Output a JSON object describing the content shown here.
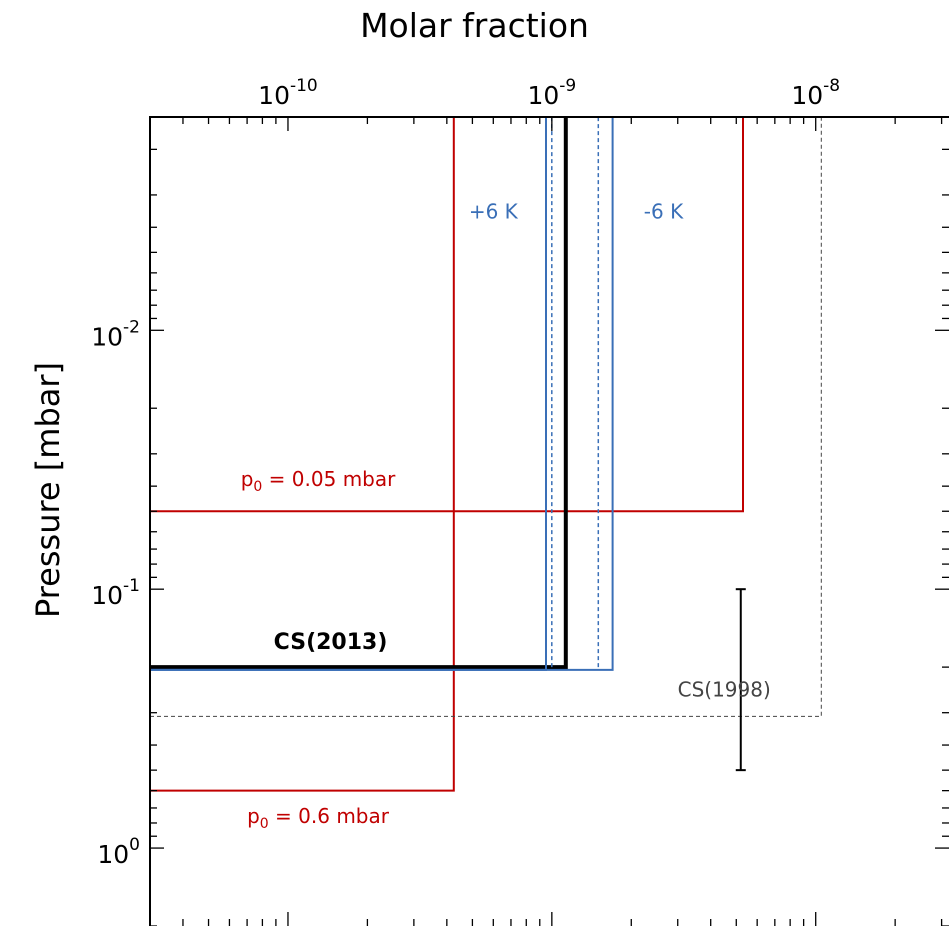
{
  "chart_data": {
    "type": "line",
    "title": "",
    "xlabel": "Molar fraction",
    "ylabel": "Pressure [mbar]",
    "x_axis": {
      "scale": "log",
      "position": "top",
      "range": [
        3e-11,
        3.2e-08
      ],
      "ticks": [
        {
          "base": "10",
          "exp": "-10",
          "value": 1e-10
        },
        {
          "base": "10",
          "exp": "-9",
          "value": 1e-09
        },
        {
          "base": "10",
          "exp": "-8",
          "value": 1e-08
        }
      ]
    },
    "y_axis": {
      "scale": "log",
      "inverted": true,
      "range": [
        0.0015,
        2.0
      ],
      "ticks": [
        {
          "base": "10",
          "exp": "-2",
          "value": 0.01
        },
        {
          "base": "10",
          "exp": "-1",
          "value": 0.1
        },
        {
          "base": "10",
          "exp": "0",
          "value": 1
        }
      ]
    },
    "grid": false,
    "series": [
      {
        "key": "p0_005",
        "color": "#c00000",
        "dash": false,
        "width": 2,
        "points": [
          [
            3e-11,
            0.05
          ],
          [
            5.3e-09,
            0.05
          ],
          [
            5.3e-09,
            0.0015
          ]
        ]
      },
      {
        "key": "p0_06",
        "color": "#c00000",
        "dash": false,
        "width": 2,
        "points": [
          [
            3e-11,
            0.6
          ],
          [
            4.25e-10,
            0.6
          ],
          [
            4.25e-10,
            0.0015
          ]
        ]
      },
      {
        "key": "cs2013",
        "color": "#000000",
        "dash": false,
        "width": 4,
        "points": [
          [
            3e-11,
            0.2
          ],
          [
            1.13e-09,
            0.2
          ],
          [
            1.13e-09,
            0.0015
          ]
        ]
      },
      {
        "key": "plus6k",
        "color": "#3a6fb7",
        "dash": false,
        "width": 2,
        "points": [
          [
            3e-11,
            0.205
          ],
          [
            9.5e-10,
            0.205
          ],
          [
            9.5e-10,
            0.0015
          ]
        ]
      },
      {
        "key": "minus6k",
        "color": "#3a6fb7",
        "dash": false,
        "width": 2,
        "points": [
          [
            3e-11,
            0.205
          ],
          [
            1.7e-09,
            0.205
          ],
          [
            1.7e-09,
            0.0015
          ]
        ]
      },
      {
        "key": "plus6k_dash",
        "color": "#3a6fb7",
        "dash": true,
        "width": 1.5,
        "points": [
          [
            1e-09,
            0.2
          ],
          [
            1e-09,
            0.0015
          ]
        ]
      },
      {
        "key": "minus6k_dash",
        "color": "#3a6fb7",
        "dash": true,
        "width": 1.5,
        "points": [
          [
            1.5e-09,
            0.2
          ],
          [
            1.5e-09,
            0.0015
          ]
        ]
      },
      {
        "key": "cs1998",
        "color": "#444444",
        "dash": true,
        "width": 1,
        "points": [
          [
            3e-11,
            0.31
          ],
          [
            1.05e-08,
            0.31
          ],
          [
            1.05e-08,
            0.0015
          ]
        ]
      }
    ],
    "error_bar": {
      "x": 5.2e-09,
      "y_low": 0.1,
      "y_high": 0.5,
      "color": "#000000"
    },
    "annotations": [
      {
        "key": "a1",
        "base": "p",
        "sub": "0",
        "rest": " = 0.05 mbar",
        "color": "#c00000",
        "x": 1.3e-10,
        "y": 0.04,
        "anchor": "middle",
        "bold": false
      },
      {
        "key": "a2",
        "base": "p",
        "sub": "0",
        "rest": " = 0.6 mbar",
        "color": "#c00000",
        "x": 1.3e-10,
        "y": 0.8,
        "anchor": "middle",
        "bold": false
      },
      {
        "key": "a3",
        "base": "CS(2013)",
        "sub": "",
        "rest": "",
        "color": "#000000",
        "x": 1.45e-10,
        "y": 0.17,
        "anchor": "middle",
        "bold": true
      },
      {
        "key": "a4",
        "base": "CS(1998)",
        "sub": "",
        "rest": "",
        "color": "#444444",
        "x": 4.5e-09,
        "y": 0.26,
        "anchor": "middle",
        "bold": false
      },
      {
        "key": "a5",
        "base": "+6 K",
        "sub": "",
        "rest": "",
        "color": "#3a6fb7",
        "x": 6e-10,
        "y": 0.0037,
        "anchor": "middle",
        "bold": false
      },
      {
        "key": "a6",
        "base": "-6 K",
        "sub": "",
        "rest": "",
        "color": "#3a6fb7",
        "x": 2.65e-09,
        "y": 0.0037,
        "anchor": "middle",
        "bold": false
      }
    ]
  }
}
